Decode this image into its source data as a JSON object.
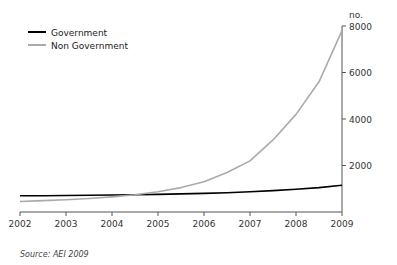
{
  "chart_data": {
    "type": "line",
    "x": [
      2002,
      2002.5,
      2003,
      2003.5,
      2004,
      2004.5,
      2005,
      2005.5,
      2006,
      2006.5,
      2007,
      2007.5,
      2008,
      2008.5,
      2009
    ],
    "series": [
      {
        "name": "Government",
        "color": "#000000",
        "values": [
          700,
          700,
          710,
          720,
          730,
          740,
          760,
          780,
          800,
          830,
          870,
          920,
          980,
          1050,
          1150
        ]
      },
      {
        "name": "Non Government",
        "color": "#aaaaaa",
        "values": [
          450,
          490,
          530,
          580,
          650,
          740,
          870,
          1050,
          1300,
          1700,
          2200,
          3100,
          4200,
          5600,
          7800
        ]
      }
    ],
    "xlim": [
      2002,
      2009
    ],
    "xticks": [
      2002,
      2003,
      2004,
      2005,
      2006,
      2007,
      2008,
      2009
    ],
    "ylim": [
      0,
      8000
    ],
    "yticks": [
      2000,
      4000,
      6000,
      8000
    ],
    "y_label": "no.",
    "annotations": [
      "Source: AEI 2009"
    ],
    "legend": "upper left",
    "grid": false
  }
}
